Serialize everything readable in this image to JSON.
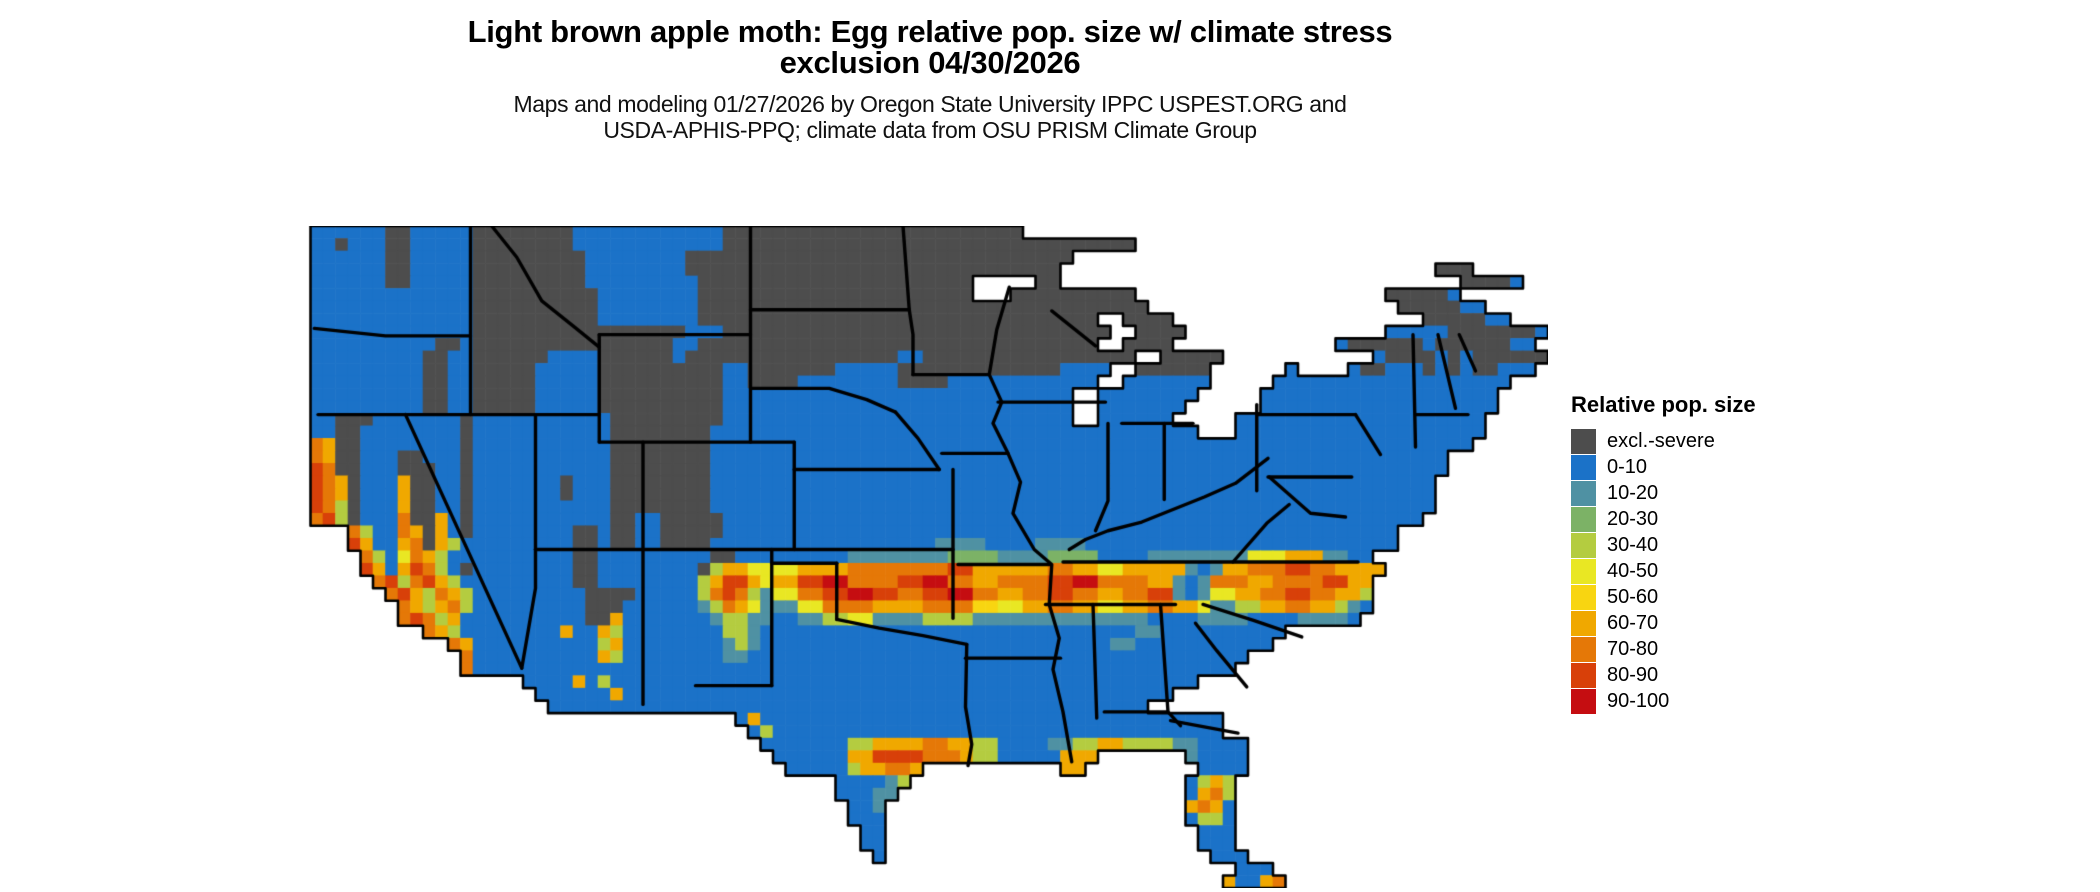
{
  "title": {
    "line1": "Light brown apple moth: Egg relative pop. size w/ climate stress",
    "line2": "exclusion 04/30/2026"
  },
  "subtitle": {
    "line1": "Maps and modeling 01/27/2026 by Oregon State University IPPC USPEST.ORG and",
    "line2": "USDA-APHIS-PPQ; climate data from OSU PRISM Climate Group"
  },
  "legend": {
    "title": "Relative pop. size",
    "entries": [
      {
        "label": "excl.-severe",
        "color": "#4d4d4d"
      },
      {
        "label": "0-10",
        "color": "#1b72c8"
      },
      {
        "label": "10-20",
        "color": "#4f91a3"
      },
      {
        "label": "20-30",
        "color": "#7cb266"
      },
      {
        "label": "30-40",
        "color": "#b4cc40"
      },
      {
        "label": "40-50",
        "color": "#e9e723"
      },
      {
        "label": "50-60",
        "color": "#f8d511"
      },
      {
        "label": "60-70",
        "color": "#f0a800"
      },
      {
        "label": "70-80",
        "color": "#e57807"
      },
      {
        "label": "80-90",
        "color": "#d84009"
      },
      {
        "label": "90-100",
        "color": "#c50d11"
      }
    ]
  },
  "map": {
    "type": "choropleth-raster",
    "region": "Continental United States",
    "value_name": "Relative pop. size",
    "palette": {
      "g": "#4d4d4d",
      "b": "#1b72c8",
      "t": "#4f91a3",
      "n": "#7cb266",
      "y": "#b4cc40",
      "Y": "#e9e723",
      "G": "#f8d511",
      "o": "#f0a800",
      "O": "#e57807",
      "r": "#d84009",
      "R": "#c50d11",
      "w": "#ffffff"
    },
    "class_of_char": {
      "g": "excl.-severe",
      "b": "0-10",
      "t": "10-20",
      "n": "20-30",
      "y": "30-40",
      "Y": "40-50",
      "G": "50-60",
      "o": "60-70",
      "O": "70-80",
      "r": "80-90",
      "R": "90-100",
      "w": "lake",
      ".": "outside"
    },
    "grid": [
      ".bbbbbbggbbbbbggggggggbbbbbbbbbbbbgggggggggggggggggggggggg....................................",
      ".bbgbbbggbbbbbggggggggbbbbbbbbbbbbggggggggggggggggggggggggggggggggg.......................................",
      ".bbbbbbggbbbbbgggggggggbbbbbbbbggggggggggggggggggggggggggggggg.........................................",
      ".bbbbbbggbbbbbgggggggggbbbbbbbbgggggggggggggggggggggggggggggg..............................ggg..",
      ".bbbbbbggbbbbbgggggggggbbbbbbbbbggggggggggggggggggggggwwwwwggwwwwwww.........................ggggb.",
      ".bbbbbbbbbbbbbggggggggggbbbbbbbbggggggggggggggggggggggwwwgggggggggg....................gggggb.",
      ".bbbbbbbbbbbbbggggggggggbbbbbbbbggggggggggggggggggggggggggggggggggggww..................gggggbb.",
      ".bbbbbbbbbbbbbggggggggggbbbbbbbbggggggggggggggggggggggggggggggggwwggggwwwwww..............gggggbb..",
      ".bbbbbbbbbbbbbgggggggggggggggggbbbgggggggggggggggggggggggggggggggwwggggwwwwww..........bbbbbgggggggb.",
      ".bbbbbbbbbbggbggggggggggggggggbbggggggggggggggggggggggggggggggggwwggggwwwwww.......bggggggbggggggbb.",
      ".bbbbbbbbbggbbggggggbbbbggggggbgggggggggggggggggbbgggggggggggggggggwwgggggwwwww..wwwwwbggggbgbggggggb..",
      ".bbbbbbbbbggbbgggggbbbbbggggggggggbbgggggggbbbbbgggggggggggggbbbbwwggggggwww...bwwwwbggbbbgbgbggbbb..",
      ".bbbbbbbbbggbbgggggbbbbbggggggggggbbggggbbbbbbbbggggbbbbbbbbbbbbwwbbbbbbbw....bbbbbbbbbbbbbbbbbbb...",
      ".bbbbbbbbbggbbgggggbbbbbggggggggggbbbbbbbbbbbbbbbbbbbbbbbbbbbbwwbbbbbbbb...wwbbbbbbbbbbbbbbbbbbb..",
      ".bbbbbbbbbggbbgggggbbbbbggggggggggbbbbbbbbbbbbbbbbbbbbbbbbbbbbwwbbbbbbbwwwwwwbbbbbbbbbbbbbbbbbbb...",
      ".bbgggbbbbbbbgbbbbbbbbbbbgggggggggbbbbbbbbbbbbbbbbbbbbbbbbbbbbwwbbbbbbwwwwwbbbbbbbbbbbbbbbbbbbb...",
      ".bbggbbbbbbbbgbbbbbbbbbbbggggggggbbbbbbbbbbbbbbbbbbbbbbbbbbbbbbbbbbbbbbbwwwbbbbbbbbbbbbbbbbbbbb...",
      ".Ooggbbbbbbbbgbbbbbbbbbbbggggggggbbbbbbbbbbbbbbbbbbbbbbbbbbbbbbbbbbbbbbbbbbbbbbbbbbbbbbbbbbbbb.......",
      ".Ooggbbbggbbbgbbbbbbbbbbbggggggggbbbbbbbbbbbbbbbbbbbbbbbbbbbbbbbbbbbbbbbbbbbbbbbbbbbbbbbbbbb...........",
      ".rOggbbbgggbbgbbbbbbbbbbbggggggggbbbbbbbbbbbbbbbbbbbbbbbbbbbbbbbbbbbbbbbbbbbbbbbbbbbbbbbbbbb...........",
      ".rOogbbboggbbgbbbbbbbgbbbggggggggbbbbbbbbbbbbbbbbbbbbbbbbbbbbbbbbbbbbbbbbbbbbbbbbbbbbbbbbbb............",
      ".rOogbbboggbbgbbbbbbbgbbbggggggggbbbbbbbbbbbbbbbbbbbbbbbbbbbbbbbbbbbbbbbbbbbbbbbbbbbbbbbbbb............",
      ".rOygbbboggbbgbbbbbbbbbbbggggggggbbbbbbbbbbbbbbbbbbbbbbbbbbbbbbbbbbbbbbbbbbbbbbbbbbbbbbbbbb............",
      ".OrygbbbOggobgbbbbbbbbbbbggbbgggggbbbbbbbbbbbbbbbbbbbbbbbbbbbbbbbbbbbbbbbbbbbbbbbbbbbbbbbb.............",
      "....OybbOogobgbbbbbbbbggbggbbgggggbbbbbbbbbbbbbbbbbbbbbbbbbbbbbbbbbbbbbbbbbbbbbbbbbbbbbb..............",
      "....robboOgoybbbbbbbbbggbggbbggggbbbbbbbbbbbbbbbbbbttttbbbbttttbbbbbbbbbbbbbbbbbbbbbbbbb..............",
      ".....OybYOoybbbbbbbbbbggbbbbbbbbbggbbbbbbbbbttttttttnnnnttttnnnnbbbbttttttttYYYooottbb................",
      ".....roborOybgbbbbbbbbggbbbbbbbbgyooYYYYooooOOOOOOOOrrooooooOOooYYoooootbtooOOOrrOOoooo................",
      "......OryOroybbbbbbbbbggbbbbbbbbyorroYoorrRROOOOrrRROOooOOOOrrRROOOOootbtOOOooOOOOrroo................",
      ".......OroyOoybbbbbbbbbggggbbbbbyOrOytYYOOrrRRrrOOrrRROOooOOrrOOooOOrrtbtYYooOOrrOOooy................",
      "........OoyoOybbbbbbbbbgggbbbbbbtyOoYtttYYOOOOooooOOOOGGYYooOOooYYooOOooYttyyooOOooytb................",
      "........OrOyobbbbbbbbbbggobbbbbbbtyyttbbttyyYYttttyyyyttttttttttttttbbbbttttbbbbttttb.................",
      "..........Ooybbbbbbbbobboybbbbbbbbyytbbbbbbbbbbbbbbbbbbbbbbbbbbbbbbttbbbbbbbbbb......................",
      "............Oobbbbbbbbbbyobbbbbbbbtytbbbbbbbbbbbbbbbbbbbbbbbbbbbbttbbbbbbbbbbb......................",
      ".............Obbbbbbbbbboybbbbbbbbttbbbbbbbbbbbbbbbbbbbbbbbbbbbbbbbbbbbbbbbb........................",
      ".............Obbbbbbbbbbbbbbbbbbbbbbbbbbbbbbbbbbbbbbbbbbbbbbbbbbbbbbbbbbbbb.........................",
      "..................bbbbobybbbbbbbbbbbbbbbbbbbbbbbbbbbbbbbbbbbbbbbbbbbbbbb............................",
      "...................bbbbbbobbbbbbbbbbbbbbbbbbbbbbbbbbbbbbbbbbbbbbbbbbbb..............................",
      "....................bbbbbbbbbbbbbbbbbbbbbbbbbbbbbbbbbbbbbbbbbbbbbbbb................................",
      "...................................bobbbbbbbbbbbbbbbbbbbbbbbbbbbbbbbbbbbbb..........................",
      "....................................bybbbbbbbbbbbbbbbbbbbbbbbbbbbbbbbbbbbb..........................",
      ".....................................bbbbbbbyyooooOOooyybbbbttyyooyyyyttbbbb.........................",
      "......................................bbbbbboorrrrOOOoyybbbbbooo.......tbbbb.........................",
      ".......................................bbbbbyooOOo...........oo.........bbbb.........................",
      "...........................................bbbbty......................byoy..........................",
      "...........................................bbbtt.......................boOy..........................",
      "............................................bbt........................oOob..........................",
      "............................................bbb........................byyb..........................",
      ".............................................bb.........................bbb..........................",
      ".............................................bb.........................bbb..........................",
      "..............................................b..........................bbb.........................",
      "...........................................................................bbb......................",
      "..........................................................................obboO......................"
    ],
    "borders": [
      [
        [
          13.8,
          0
        ],
        [
          13.8,
          15.1
        ]
      ],
      [
        [
          1.3,
          8.2
        ],
        [
          7,
          8.8
        ],
        [
          13.8,
          8.8
        ]
      ],
      [
        [
          1.6,
          15.1
        ],
        [
          24.1,
          15.1
        ]
      ],
      [
        [
          8.6,
          15.1
        ],
        [
          17.9,
          35.4
        ]
      ],
      [
        [
          19,
          15.1
        ],
        [
          19,
          25.9
        ]
      ],
      [
        [
          19,
          25.9
        ],
        [
          19,
          29
        ],
        [
          17.9,
          35.4
        ]
      ],
      [
        [
          15.5,
          0
        ],
        [
          17.5,
          2.5
        ],
        [
          19.5,
          6
        ],
        [
          22,
          8
        ],
        [
          24.1,
          9.7
        ]
      ],
      [
        [
          24.1,
          8.7
        ],
        [
          36.2,
          8.7
        ]
      ],
      [
        [
          24.1,
          8.7
        ],
        [
          24.1,
          17.3
        ]
      ],
      [
        [
          36.2,
          0
        ],
        [
          36.2,
          17.3
        ]
      ],
      [
        [
          36.2,
          6.7
        ],
        [
          48.9,
          6.7
        ]
      ],
      [
        [
          36.2,
          13
        ],
        [
          42.5,
          13
        ],
        [
          45.5,
          13.9
        ],
        [
          47.8,
          14.9
        ]
      ],
      [
        [
          24.1,
          17.3
        ],
        [
          39.7,
          17.3
        ]
      ],
      [
        [
          39.7,
          17.3
        ],
        [
          39.7,
          25.9
        ]
      ],
      [
        [
          39.7,
          19.5
        ],
        [
          51.3,
          19.5
        ]
      ],
      [
        [
          27.6,
          17.3
        ],
        [
          27.6,
          25.9
        ]
      ],
      [
        [
          27.6,
          25.9
        ],
        [
          27.6,
          38.3
        ]
      ],
      [
        [
          19,
          25.9
        ],
        [
          52.4,
          25.9
        ]
      ],
      [
        [
          37.9,
          25.9
        ],
        [
          37.9,
          36.8
        ]
      ],
      [
        [
          31.8,
          36.8
        ],
        [
          37.9,
          36.8
        ]
      ],
      [
        [
          37.9,
          27
        ],
        [
          43.1,
          27
        ]
      ],
      [
        [
          43.1,
          27
        ],
        [
          43.1,
          31.5
        ]
      ],
      [
        [
          43.1,
          31.5
        ],
        [
          46.5,
          32.2
        ],
        [
          50,
          32.8
        ],
        [
          53.5,
          33.5
        ]
      ],
      [
        [
          52.4,
          19.5
        ],
        [
          52.4,
          31.4
        ]
      ],
      [
        [
          53.5,
          33.5
        ],
        [
          53.4,
          38.5
        ],
        [
          53.9,
          41.5
        ],
        [
          53.6,
          43.2
        ]
      ],
      [
        [
          52.8,
          27.1
        ],
        [
          60.2,
          27.1
        ]
      ],
      [
        [
          53.4,
          34.6
        ],
        [
          61,
          34.6
        ]
      ],
      [
        [
          48.4,
          0
        ],
        [
          48.9,
          6.7
        ],
        [
          49.2,
          8.7
        ],
        [
          49.2,
          11.9
        ]
      ],
      [
        [
          49.2,
          11.9
        ],
        [
          55.3,
          11.9
        ]
      ],
      [
        [
          56.9,
          4.9
        ],
        [
          55.9,
          8.3
        ],
        [
          55.3,
          11.9
        ]
      ],
      [
        [
          55.3,
          11.9
        ],
        [
          56.3,
          14.1
        ],
        [
          55.6,
          15.8
        ],
        [
          56.8,
          18.2
        ],
        [
          57.8,
          20.5
        ],
        [
          57.2,
          23
        ],
        [
          58.9,
          25.9
        ],
        [
          60.3,
          27.1
        ],
        [
          60.1,
          30.3
        ],
        [
          60.9,
          33
        ],
        [
          60.4,
          35.5
        ],
        [
          61.2,
          38.9
        ],
        [
          61.9,
          42.9
        ]
      ],
      [
        [
          51.5,
          18.2
        ],
        [
          56.8,
          18.2
        ]
      ],
      [
        [
          47.8,
          14.9
        ],
        [
          49.6,
          17
        ],
        [
          51.3,
          19.5
        ]
      ],
      [
        [
          56,
          14.1
        ],
        [
          64.6,
          14.1
        ]
      ],
      [
        [
          65.9,
          15.8
        ],
        [
          71.6,
          15.8
        ]
      ],
      [
        [
          64.8,
          15.8
        ],
        [
          64.8,
          22
        ],
        [
          63.8,
          24.4
        ]
      ],
      [
        [
          69.3,
          15.8
        ],
        [
          69.3,
          21.9
        ]
      ],
      [
        [
          76.7,
          14.3
        ],
        [
          76.7,
          21.2
        ]
      ],
      [
        [
          77.6,
          18.6
        ],
        [
          75,
          20.6
        ],
        [
          72.5,
          21.7
        ],
        [
          70,
          22.7
        ],
        [
          67.5,
          23.7
        ],
        [
          64.8,
          24.4
        ],
        [
          63,
          25.1
        ],
        [
          61.7,
          25.9
        ]
      ],
      [
        [
          61.2,
          26.9
        ],
        [
          84.8,
          26.9
        ]
      ],
      [
        [
          59.8,
          30.3
        ],
        [
          70.2,
          30.3
        ]
      ],
      [
        [
          63.6,
          30.3
        ],
        [
          63.9,
          39.4
        ]
      ],
      [
        [
          69,
          30.3
        ],
        [
          69.6,
          38.9
        ],
        [
          70.6,
          40
        ]
      ],
      [
        [
          64.5,
          38.9
        ],
        [
          69.6,
          38.9
        ]
      ],
      [
        [
          69.8,
          39.6
        ],
        [
          75.2,
          40.6
        ]
      ],
      [
        [
          75.9,
          36.9
        ],
        [
          73.5,
          34
        ],
        [
          71.8,
          31.8
        ]
      ],
      [
        [
          80.3,
          32.9
        ],
        [
          76.5,
          31.6
        ],
        [
          72.4,
          30.3
        ]
      ],
      [
        [
          76.7,
          15.1
        ],
        [
          84.6,
          15.1
        ]
      ],
      [
        [
          84.6,
          15.1
        ],
        [
          86.6,
          18.3
        ]
      ],
      [
        [
          77.6,
          20.1
        ],
        [
          84.3,
          20.1
        ]
      ],
      [
        [
          89.2,
          8.7
        ],
        [
          89.4,
          17.7
        ]
      ],
      [
        [
          89.4,
          15.1
        ],
        [
          93.6,
          15.1
        ]
      ],
      [
        [
          91.2,
          8.7
        ],
        [
          92.6,
          14.6
        ]
      ],
      [
        [
          92.9,
          8.7
        ],
        [
          94.2,
          11.6
        ]
      ],
      [
        [
          60.3,
          6.8
        ],
        [
          63.8,
          9.6
        ]
      ],
      [
        [
          74.8,
          26.9
        ],
        [
          77.5,
          23.8
        ],
        [
          79.3,
          22.3
        ]
      ],
      [
        [
          77.7,
          20.1
        ],
        [
          81,
          23
        ],
        [
          83.8,
          23.3
        ]
      ]
    ]
  }
}
